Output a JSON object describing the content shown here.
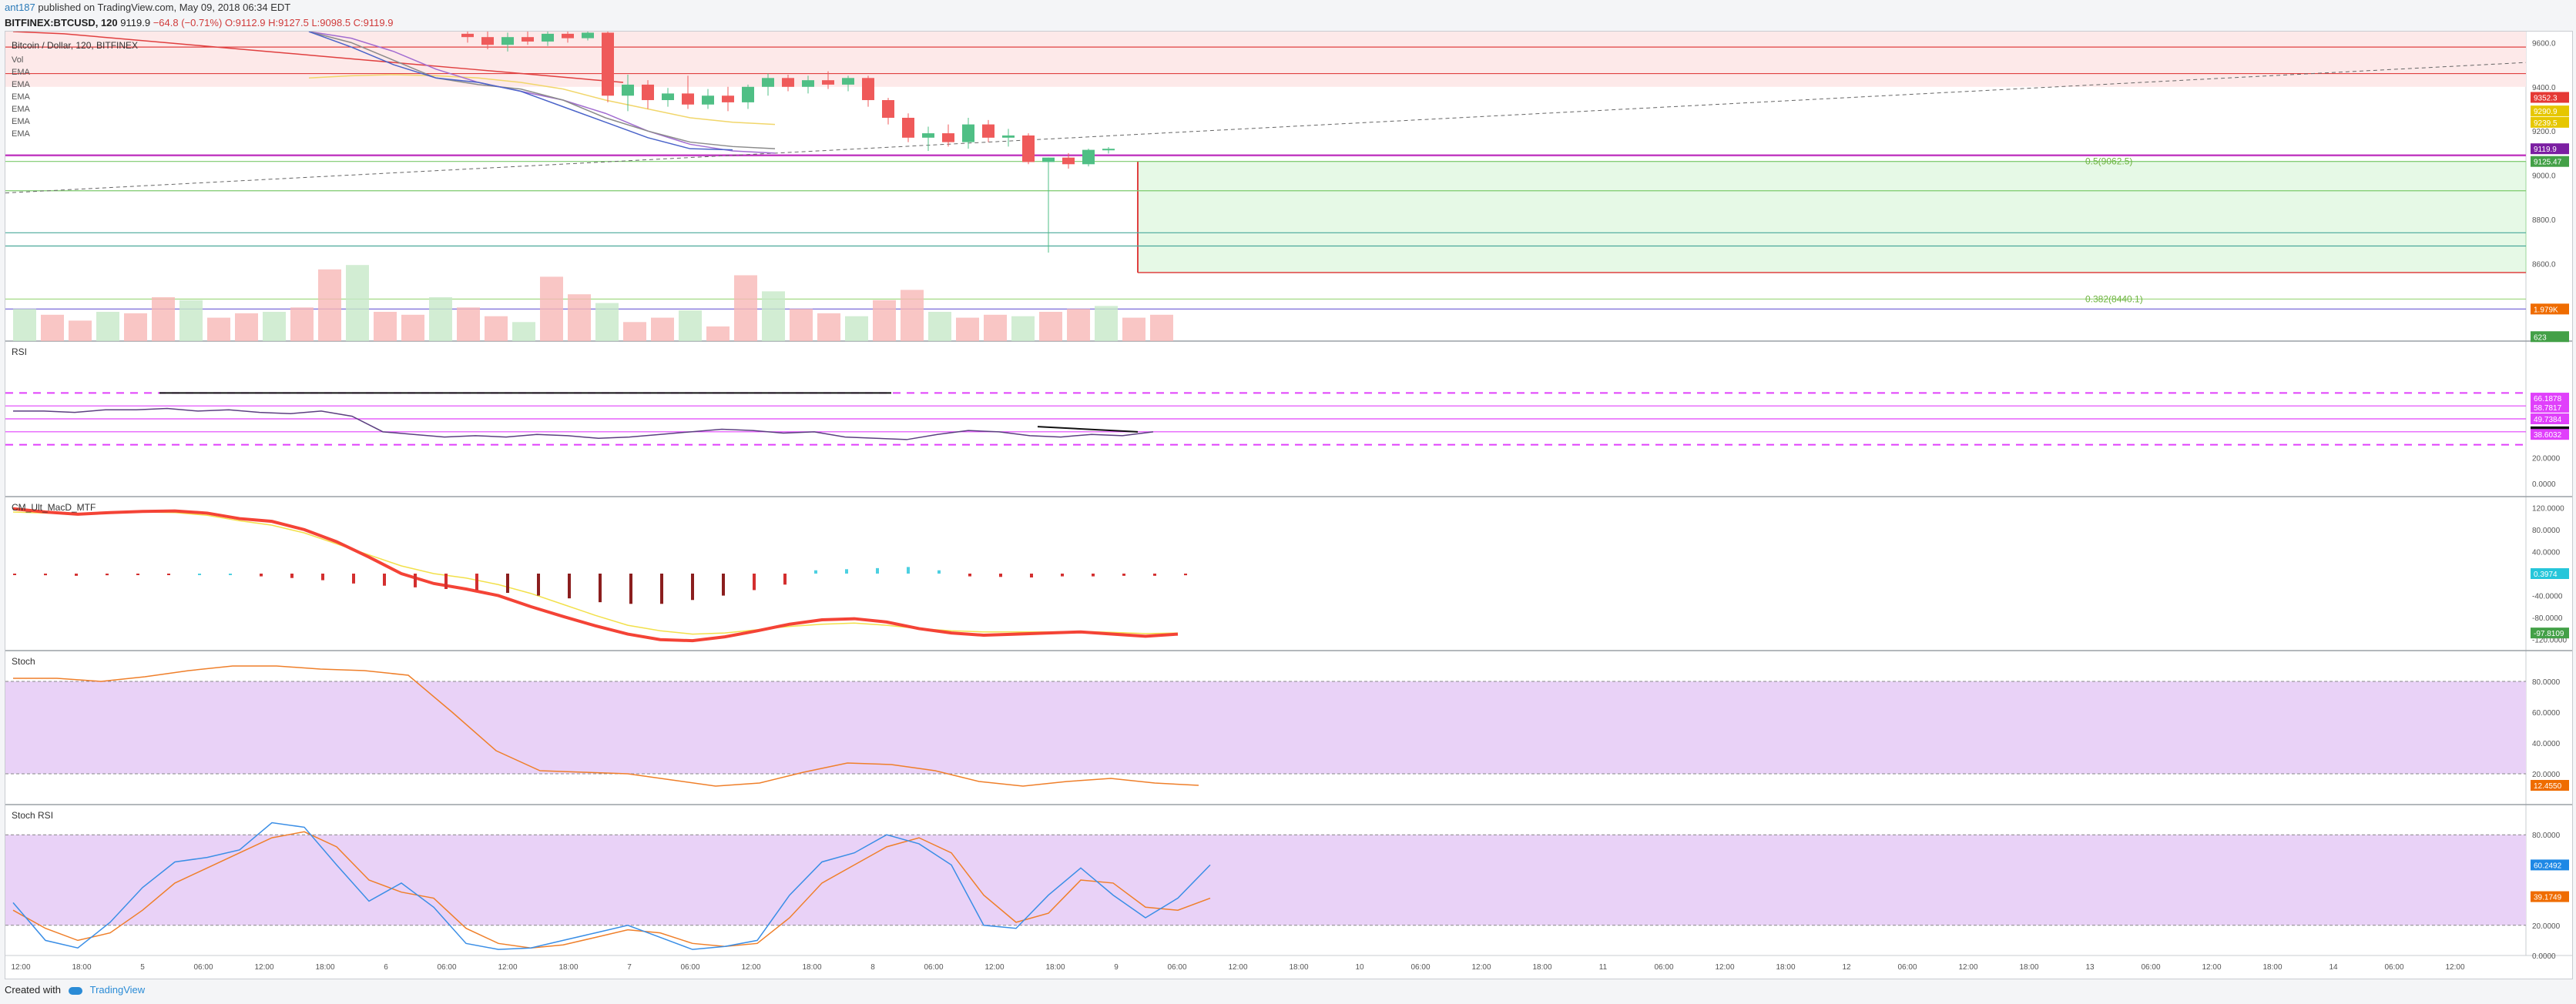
{
  "header": {
    "user": "ant187",
    "published": "published on TradingView.com, May 09, 2018 06:34 EDT",
    "symbol": "BITFINEX:BTCUSD, 120",
    "last": "9119.9",
    "change": "−64.8 (−0.71%)",
    "ohlc": "O:9112.9 H:9127.5 L:9098.5 C:9119.9"
  },
  "footer": {
    "created_with": "Created with",
    "brand": "TradingView"
  },
  "colors": {
    "up": "#4fbf85",
    "down": "#ef5a5a",
    "rsi_band": "#e040fb",
    "stoch_bg": "#e9d2f7",
    "macd": "#f44336",
    "macd_up": "#62e64a",
    "signal": "#f2e04a",
    "stoch_k": "#ef7f2a",
    "stoch_rsi_k": "#3a8ee6",
    "bg_zone": "#fde9e9",
    "fib_zone": "#e6f9e6"
  },
  "chart_data": [
    {
      "type": "candlestick",
      "title": "Bitcoin / Dollar, 120, BITFINEX",
      "legend": [
        "Vol",
        "EMA",
        "EMA",
        "EMA",
        "EMA",
        "EMA",
        "EMA"
      ],
      "ylim": [
        8250,
        9650
      ],
      "y_ticks": [
        "9600.0",
        "9400.0",
        "9200.0",
        "9000.0",
        "8800.0",
        "8600.0",
        "8400.0"
      ],
      "x_ticks": [
        "12:00",
        "18:00",
        "5",
        "06:00",
        "12:00",
        "18:00",
        "6",
        "06:00",
        "12:00",
        "18:00",
        "7",
        "06:00",
        "12:00",
        "18:00",
        "8",
        "06:00",
        "12:00",
        "18:00",
        "9",
        "06:00",
        "12:00",
        "18:00",
        "10",
        "06:00",
        "12:00",
        "18:00",
        "11",
        "06:00",
        "12:00",
        "18:00",
        "12",
        "06:00",
        "12:00",
        "18:00",
        "13",
        "06:00",
        "12:00",
        "18:00",
        "14",
        "06:00",
        "12:00"
      ],
      "candles": [
        [
          9640,
          9650,
          9600,
          9625
        ],
        [
          9625,
          9650,
          9570,
          9590
        ],
        [
          9590,
          9645,
          9560,
          9625
        ],
        [
          9625,
          9650,
          9590,
          9605
        ],
        [
          9605,
          9650,
          9585,
          9640
        ],
        [
          9640,
          9650,
          9600,
          9620
        ],
        [
          9620,
          9650,
          9610,
          9645
        ],
        [
          9645,
          9650,
          9330,
          9360
        ],
        [
          9360,
          9455,
          9290,
          9410
        ],
        [
          9410,
          9430,
          9300,
          9340
        ],
        [
          9340,
          9395,
          9310,
          9370
        ],
        [
          9370,
          9450,
          9300,
          9320
        ],
        [
          9320,
          9390,
          9300,
          9360
        ],
        [
          9360,
          9400,
          9290,
          9330
        ],
        [
          9330,
          9410,
          9300,
          9400
        ],
        [
          9400,
          9460,
          9360,
          9440
        ],
        [
          9440,
          9455,
          9380,
          9400
        ],
        [
          9400,
          9450,
          9370,
          9430
        ],
        [
          9430,
          9470,
          9390,
          9410
        ],
        [
          9410,
          9450,
          9380,
          9440
        ],
        [
          9440,
          9450,
          9310,
          9340
        ],
        [
          9340,
          9350,
          9230,
          9260
        ],
        [
          9260,
          9280,
          9150,
          9170
        ],
        [
          9170,
          9220,
          9110,
          9190
        ],
        [
          9190,
          9230,
          9130,
          9150
        ],
        [
          9150,
          9260,
          9120,
          9230
        ],
        [
          9230,
          9250,
          9150,
          9170
        ],
        [
          9170,
          9210,
          9130,
          9180
        ],
        [
          9180,
          9190,
          9050,
          9060
        ],
        [
          9060,
          9080,
          8650,
          9080
        ],
        [
          9080,
          9100,
          9030,
          9050
        ],
        [
          9050,
          9120,
          9040,
          9115
        ],
        [
          9112.9,
          9127.5,
          9098.5,
          9119.9
        ]
      ],
      "volume_bars": [
        22,
        18,
        14,
        20,
        19,
        30,
        28,
        16,
        19,
        20,
        23,
        49,
        52,
        20,
        18,
        30,
        23,
        17,
        13,
        44,
        32,
        26,
        13,
        16,
        21,
        10,
        45,
        34,
        22,
        19,
        17,
        28,
        35,
        20,
        16,
        18,
        17,
        20,
        22,
        24,
        16,
        18
      ],
      "lines": [
        {
          "label": "0.5(9062.5)",
          "value": 9062.5
        },
        {
          "label": "0.382(8440.1)",
          "value": 8440.1
        }
      ],
      "price_labels": [
        "9352.3",
        "9290.9",
        "9239.5",
        "9119.9",
        "9125.47",
        "1.979K",
        "623"
      ]
    },
    {
      "type": "line",
      "title": "RSI",
      "ylim": [
        -10,
        110
      ],
      "y_ticks": [
        "60.0000",
        "40.0000",
        "20.0000",
        "0.0000"
      ],
      "rsi": [
        56,
        56,
        55,
        57,
        57,
        58,
        56,
        57,
        55,
        54,
        56,
        52,
        40,
        38,
        36,
        37,
        36,
        38,
        37,
        35,
        36,
        38,
        40,
        42,
        41,
        39,
        40,
        36,
        35,
        34,
        38,
        41,
        40,
        37,
        36,
        38,
        37,
        40
      ],
      "price_labels": [
        "66.1878",
        "58.7817",
        "49.7384",
        "40.0420",
        "38.6032"
      ]
    },
    {
      "type": "bar",
      "title": "CM_Ult_MacD_MTF",
      "ylim": [
        -140,
        140
      ],
      "y_ticks": [
        "120.0000",
        "80.0000",
        "40.0000",
        "0.0000",
        "-40.0000",
        "-80.0000",
        "-120.0000"
      ],
      "macd": [
        118,
        112,
        108,
        111,
        113,
        114,
        110,
        100,
        95,
        80,
        58,
        30,
        0,
        -18,
        -28,
        -40,
        -60,
        -78,
        -95,
        -110,
        -120,
        -122,
        -115,
        -104,
        -92,
        -84,
        -82,
        -88,
        -100,
        -108,
        -112,
        -110,
        -108,
        -106,
        -110,
        -114,
        -110
      ],
      "signal": [
        112,
        110,
        108,
        110,
        112,
        111,
        106,
        96,
        88,
        74,
        54,
        34,
        14,
        0,
        -8,
        -20,
        -36,
        -56,
        -76,
        -94,
        -104,
        -110,
        -108,
        -102,
        -96,
        -92,
        -90,
        -94,
        -100,
        -104,
        -106,
        -106,
        -106,
        -105,
        -107,
        -109,
        -108
      ],
      "histogram": [
        -2,
        -3,
        -4,
        -3,
        -2,
        -1,
        0,
        0,
        -5,
        -8,
        -12,
        -18,
        -22,
        -25,
        -28,
        -30,
        -35,
        -40,
        -45,
        -52,
        -55,
        -55,
        -48,
        -40,
        -30,
        -20,
        6,
        8,
        10,
        12,
        6,
        -5,
        -6,
        -7,
        -5,
        -5,
        -4,
        -4,
        -3
      ],
      "price_labels": [
        "0.3974",
        "-97.8109"
      ]
    },
    {
      "type": "line",
      "title": "Stoch",
      "ylim": [
        0,
        100
      ],
      "y_ticks": [
        "80.0000",
        "60.0000",
        "40.0000",
        "20.0000"
      ],
      "k": [
        82,
        82,
        80,
        83,
        87,
        90,
        90,
        88,
        87,
        84,
        60,
        35,
        22,
        21,
        20,
        16,
        12,
        14,
        21,
        27,
        26,
        22,
        15,
        12,
        15,
        17,
        14,
        12.5
      ],
      "price_labels": [
        "12.4550"
      ]
    },
    {
      "type": "line",
      "title": "Stoch RSI",
      "ylim": [
        0,
        100
      ],
      "y_ticks": [
        "80.0000",
        "60.0000",
        "40.0000",
        "20.0000",
        "0.0000"
      ],
      "k": [
        35,
        10,
        5,
        22,
        45,
        62,
        65,
        70,
        88,
        85,
        60,
        36,
        48,
        32,
        8,
        4,
        5,
        10,
        15,
        20,
        12,
        4,
        6,
        10,
        40,
        62,
        68,
        80,
        74,
        60,
        20,
        18,
        40,
        58,
        40,
        25,
        38,
        60
      ],
      "d": [
        30,
        18,
        10,
        15,
        30,
        48,
        58,
        68,
        78,
        82,
        72,
        50,
        42,
        38,
        18,
        8,
        5,
        7,
        12,
        17,
        15,
        8,
        6,
        8,
        25,
        48,
        60,
        72,
        78,
        68,
        40,
        22,
        28,
        50,
        48,
        32,
        30,
        38
      ],
      "price_labels": [
        "60.2492",
        "39.1749"
      ]
    }
  ]
}
